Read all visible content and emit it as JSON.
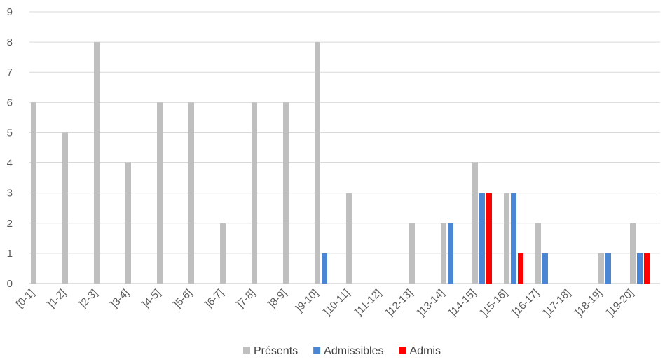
{
  "chart_data": {
    "type": "bar",
    "title": "",
    "xlabel": "",
    "ylabel": "",
    "ylim": [
      0,
      9
    ],
    "yticks": [
      "0",
      "1",
      "2",
      "3",
      "4",
      "5",
      "6",
      "7",
      "8",
      "9"
    ],
    "grid": true,
    "legend_position": "bottom",
    "categories": [
      "[0-1]",
      "]1-2]",
      "]2-3]",
      "]3-4]",
      "]4-5]",
      "]5-6]",
      "]6-7]",
      "]7-8]",
      "]8-9]",
      "]9-10]",
      "]10-11]",
      "]11-12]",
      "]12-13]",
      "]13-14]",
      "]14-15]",
      "]15-16]",
      "]16-17]",
      "]17-18]",
      "]18-19]",
      "]19-20]"
    ],
    "series": [
      {
        "name": "Présents",
        "color": "#bfbfbf",
        "values": [
          6,
          5,
          8,
          4,
          6,
          6,
          2,
          6,
          6,
          8,
          3,
          0,
          2,
          2,
          4,
          3,
          2,
          0,
          1,
          2
        ]
      },
      {
        "name": "Admissibles",
        "color": "#4a86d3",
        "values": [
          0,
          0,
          0,
          0,
          0,
          0,
          0,
          0,
          0,
          1,
          0,
          0,
          0,
          2,
          3,
          3,
          1,
          0,
          1,
          1
        ]
      },
      {
        "name": "Admis",
        "color": "#ff0000",
        "values": [
          0,
          0,
          0,
          0,
          0,
          0,
          0,
          0,
          0,
          0,
          0,
          0,
          0,
          0,
          3,
          1,
          0,
          0,
          0,
          1
        ]
      }
    ]
  }
}
